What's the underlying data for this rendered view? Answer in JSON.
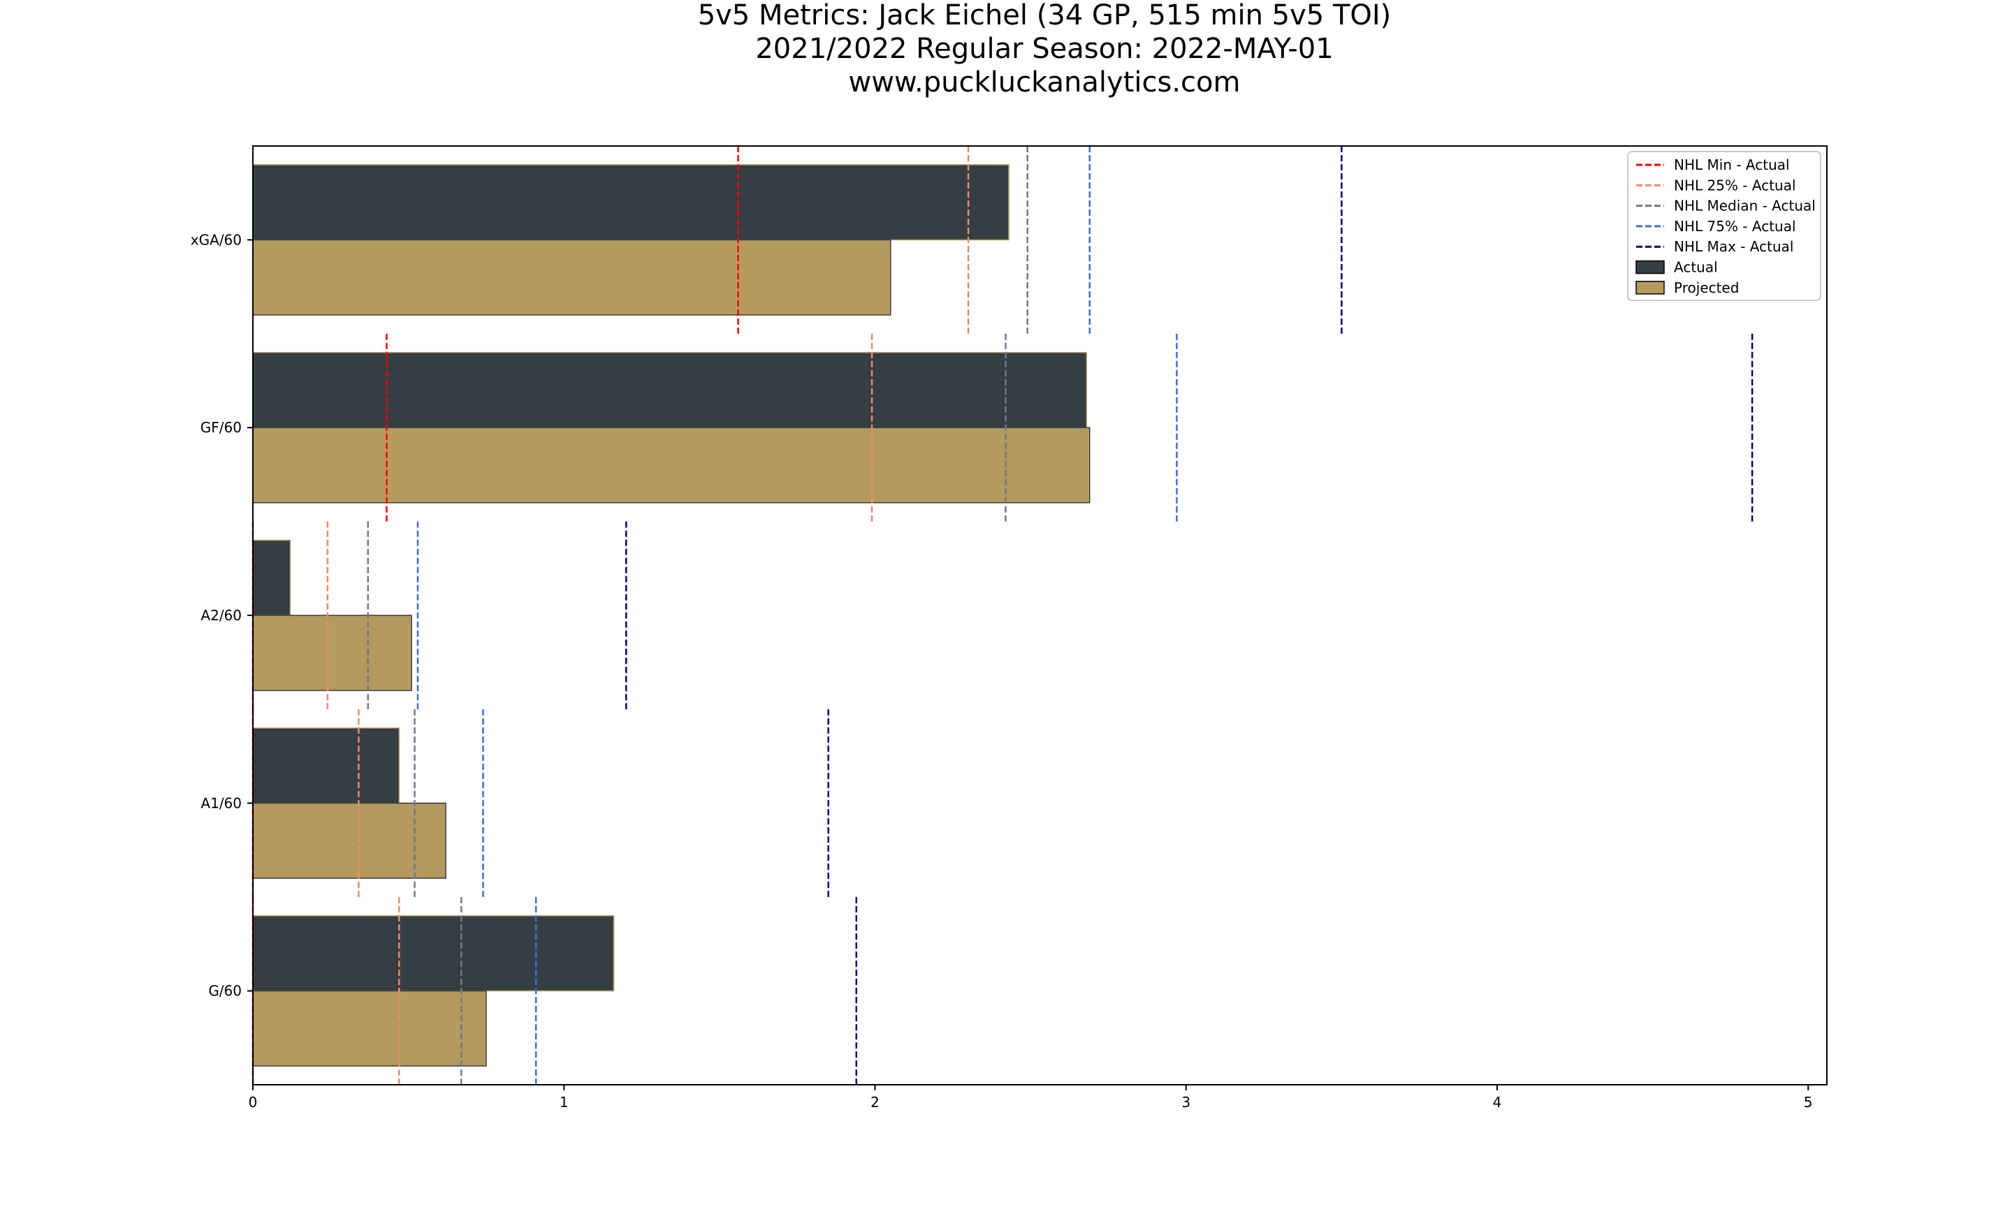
{
  "chart_data": {
    "type": "bar",
    "orientation": "horizontal",
    "title": [
      "5v5 Metrics: Jack Eichel (34 GP, 515 min 5v5 TOI)",
      "2021/2022 Regular Season: 2022-MAY-01",
      "www.puckluckanalytics.com"
    ],
    "xlabel": "",
    "ylabel": "",
    "xlim": [
      0,
      5.06
    ],
    "x_ticks": [
      0,
      1,
      2,
      3,
      4,
      5
    ],
    "grid": false,
    "legend_position": "upper-right",
    "categories": [
      "G/60",
      "A1/60",
      "A2/60",
      "GF/60",
      "xGA/60"
    ],
    "series": [
      {
        "name": "Actual",
        "color": "#343e43",
        "edge": "#b59a5e",
        "values": [
          1.16,
          0.47,
          0.12,
          2.68,
          2.43
        ]
      },
      {
        "name": "Projected",
        "color": "#b59a5e",
        "edge": "#343e43",
        "values": [
          0.75,
          0.62,
          0.51,
          2.69,
          2.05
        ]
      }
    ],
    "reference_lines": [
      {
        "name": "NHL Min - Actual",
        "color": "#ff0000",
        "values": [
          0.0,
          0.0,
          0.0,
          0.43,
          1.56
        ]
      },
      {
        "name": "NHL 25% - Actual",
        "color": "#f08a6a",
        "values": [
          0.47,
          0.34,
          0.24,
          1.99,
          2.3
        ]
      },
      {
        "name": "NHL Median - Actual",
        "color": "#6e7890",
        "values": [
          0.67,
          0.52,
          0.37,
          2.42,
          2.49
        ]
      },
      {
        "name": "NHL 75% - Actual",
        "color": "#4169e1",
        "values": [
          0.91,
          0.74,
          0.53,
          2.97,
          2.69
        ]
      },
      {
        "name": "NHL Max - Actual",
        "color": "#000080",
        "values": [
          1.94,
          1.85,
          1.2,
          4.82,
          3.5
        ]
      }
    ]
  }
}
